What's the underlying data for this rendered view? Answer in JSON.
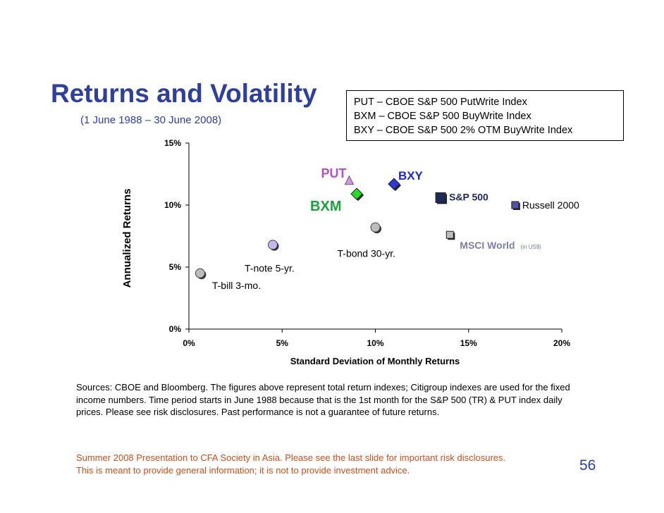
{
  "slide": {
    "title": "Returns and Volatility",
    "subtitle": "(1 June 1988 – 30 June 2008)",
    "legend": [
      "PUT – CBOE S&P 500 PutWrite Index",
      "BXM – CBOE S&P 500 BuyWrite Index",
      "BXY – CBOE S&P 500 2% OTM BuyWrite Index"
    ],
    "sources": "Sources: CBOE and Bloomberg.  The figures above represent total return indexes; Citigroup indexes are used for the fixed income numbers.  Time period starts in June 1988 because that is the 1st month for the S&P 500 (TR) & PUT index daily prices.  Please see risk disclosures.  Past performance is not a guarantee of future returns.",
    "disclaimer_line1": "Summer 2008 Presentation to CFA Society in Asia.  Please see the last slide for important risk disclosures.",
    "disclaimer_line2": "This is meant to provide general information; it is not to provide investment advice.",
    "page_number": "56"
  },
  "chart_data": {
    "type": "scatter",
    "xlabel": "Standard Deviation of Monthly Returns",
    "ylabel": "Annualized Returns",
    "xlim": [
      0,
      20
    ],
    "ylim": [
      0,
      15
    ],
    "x_ticks": [
      "0%",
      "5%",
      "10%",
      "15%",
      "20%"
    ],
    "y_ticks": [
      "0%",
      "5%",
      "10%",
      "15%"
    ],
    "points": [
      {
        "name": "T-bill 3-mo.",
        "x": 0.6,
        "y": 4.5,
        "marker": "circle",
        "color": "#bdbdbd"
      },
      {
        "name": "T-note 5-yr.",
        "x": 4.5,
        "y": 6.8,
        "marker": "circle",
        "color": "#c9b8f0"
      },
      {
        "name": "T-bond 30-yr.",
        "x": 10.0,
        "y": 8.2,
        "marker": "circle",
        "color": "#bdbdbd"
      },
      {
        "name": "PUT",
        "x": 8.6,
        "y": 12.0,
        "marker": "triangle",
        "color": "#c99ad6"
      },
      {
        "name": "BXM",
        "x": 9.0,
        "y": 10.9,
        "marker": "diamond",
        "color": "#22dd22"
      },
      {
        "name": "BXY",
        "x": 11.0,
        "y": 11.7,
        "marker": "diamond",
        "color": "#2b35d8"
      },
      {
        "name": "S&P 500",
        "x": 13.5,
        "y": 10.6,
        "marker": "square",
        "color": "#1e2a5a"
      },
      {
        "name": "Russell 2000",
        "x": 17.5,
        "y": 10.0,
        "marker": "square",
        "color": "#5050a8"
      },
      {
        "name": "MSCI World",
        "name_suffix": "(in US$)",
        "x": 14.0,
        "y": 7.6,
        "marker": "square",
        "color": "#bdbdbd"
      }
    ]
  }
}
